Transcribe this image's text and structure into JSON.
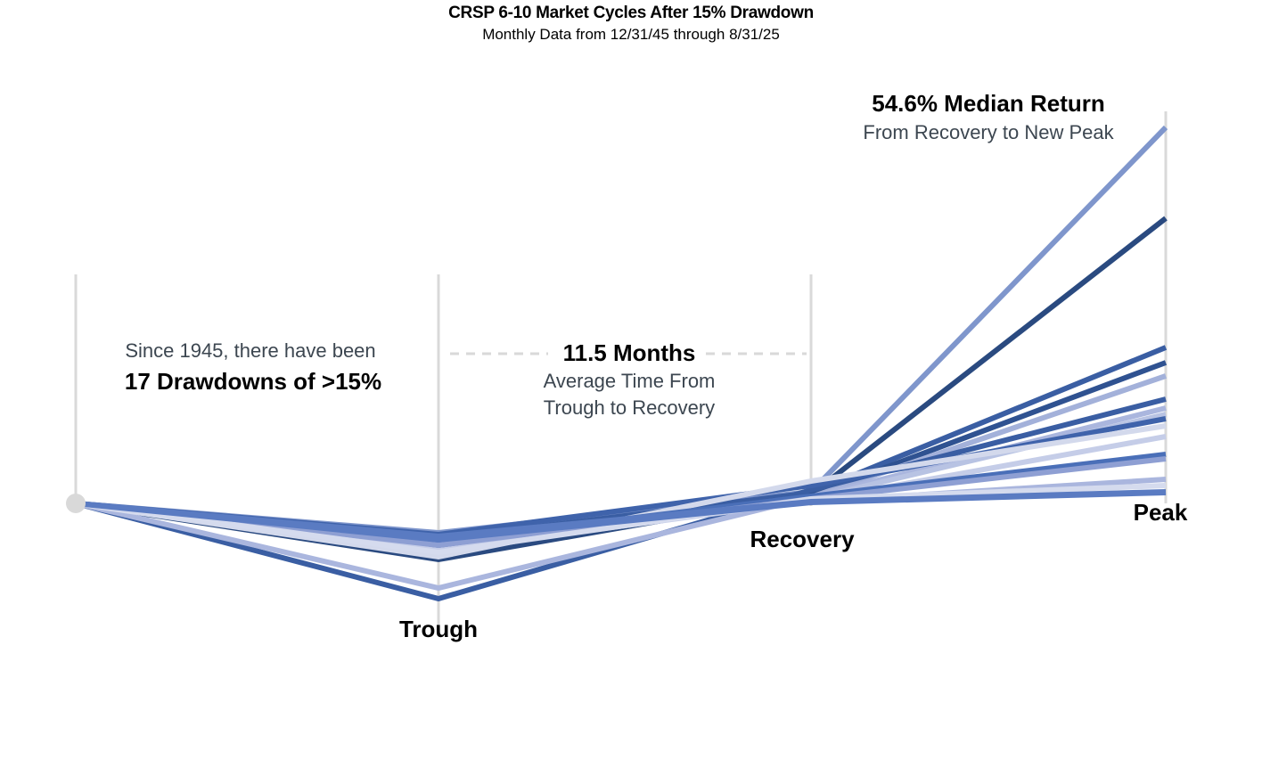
{
  "chart_data": {
    "type": "line",
    "title": "CRSP 6-10 Market Cycles After 15% Drawdown",
    "subtitle": "Monthly Data from 12/31/45 through 8/31/25",
    "categories": [
      "",
      "Trough",
      "Recovery",
      "Peak"
    ],
    "grid": false,
    "legend": "none",
    "series": [
      {
        "values": [
          0,
          -3.3,
          1.3,
          42.2
        ],
        "color": "#7f96cc"
      },
      {
        "values": [
          0,
          -6.3,
          1.0,
          32.0
        ],
        "color": "#2a4a80"
      },
      {
        "values": [
          0,
          -4.0,
          1.2,
          17.5
        ],
        "color": "#3a5ea3"
      },
      {
        "values": [
          0,
          -5.0,
          0.9,
          15.8
        ],
        "color": "#2f5291"
      },
      {
        "values": [
          0,
          -5.5,
          0.7,
          14.3
        ],
        "color": "#a3b1da"
      },
      {
        "values": [
          0,
          -10.7,
          1.5,
          11.7
        ],
        "color": "#3a5ea3"
      },
      {
        "values": [
          0,
          -9.5,
          0.7,
          10.7
        ],
        "color": "#aab6de"
      },
      {
        "values": [
          0,
          -4.5,
          0.5,
          10.0
        ],
        "color": "#b8c3e3"
      },
      {
        "values": [
          0,
          -3.5,
          2.0,
          9.5
        ],
        "color": "#3f63ab"
      },
      {
        "values": [
          0,
          -6.0,
          2.5,
          8.7
        ],
        "color": "#d3d9ec"
      },
      {
        "values": [
          0,
          -5.3,
          0.3,
          7.5
        ],
        "color": "#c5cde8"
      },
      {
        "values": [
          0,
          -4.3,
          0.8,
          5.5
        ],
        "color": "#4a6fb8"
      },
      {
        "values": [
          0,
          -4.7,
          0.5,
          5.0
        ],
        "color": "#8e9fd3"
      },
      {
        "values": [
          0,
          -3.9,
          0.2,
          2.7
        ],
        "color": "#aab6de"
      },
      {
        "values": [
          0,
          -5.5,
          0.5,
          2.0
        ],
        "color": "#d5dbee"
      },
      {
        "values": [
          0,
          -3.7,
          0.2,
          1.3
        ],
        "color": "#5a7bc2"
      },
      {
        "values": [
          0,
          -4.1,
          0.1,
          1.2
        ],
        "color": "#5a7bc2"
      }
    ],
    "annotations": {
      "drawdowns_intro": "Since 1945, there have been",
      "drawdowns_count": "17 Drawdowns of >15%",
      "months": "11.5 Months",
      "months_sub1": "Average Time From",
      "months_sub2": "Trough to Recovery",
      "median": "54.6% Median Return",
      "median_sub": "From Recovery to New Peak"
    },
    "colors": {
      "axis": "#d9d9d9",
      "dot": "#d9d9d9",
      "dash": "#d9d9d9"
    }
  }
}
